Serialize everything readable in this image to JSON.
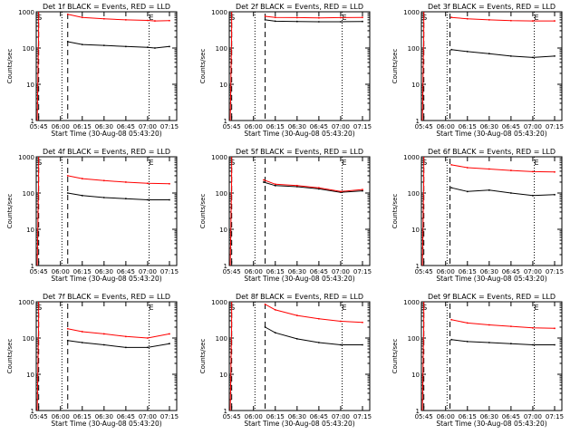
{
  "xlabel": "Start Time (30-Aug-08 05:43:20)",
  "ylabel": "Counts/sec",
  "x_ticks": [
    "05:45",
    "06:00",
    "06:15",
    "06:30",
    "06:45",
    "07:00",
    "07:15"
  ],
  "y_ticks": [
    "1",
    "10",
    "100",
    "1000"
  ],
  "colors": {
    "events": "#000000",
    "lld": "#ff0000",
    "axes": "#000000"
  },
  "chart_data": [
    {
      "type": "line",
      "title": "Det 1f BLACK = Events, RED = LLD",
      "x": [
        "06:05",
        "06:15",
        "06:30",
        "06:45",
        "07:00",
        "07:05",
        "07:15"
      ],
      "xlim": [
        "05:43:20",
        "07:20"
      ],
      "ylim": [
        1,
        1000
      ],
      "yscale": "log",
      "markers": {
        "S": "05:44",
        "E": "07:01"
      },
      "dashed_lines": [
        "05:45",
        "06:05"
      ],
      "dotted_lines": [
        "06:01",
        "07:01"
      ],
      "series": [
        {
          "name": "Events",
          "values": [
            150,
            125,
            118,
            110,
            105,
            100,
            110
          ]
        },
        {
          "name": "LLD",
          "values": [
            850,
            700,
            640,
            600,
            580,
            560,
            570
          ]
        }
      ]
    },
    {
      "type": "line",
      "title": "Det 2f BLACK = Events, RED = LLD",
      "x": [
        "06:08",
        "06:15",
        "06:30",
        "06:45",
        "07:00",
        "07:15"
      ],
      "xlim": [
        "05:43:20",
        "07:20"
      ],
      "ylim": [
        1,
        1000
      ],
      "yscale": "log",
      "markers": {
        "S": "05:44",
        "E": "07:01"
      },
      "dashed_lines": [
        "05:45",
        "06:08"
      ],
      "dotted_lines": [
        "06:01",
        "07:01"
      ],
      "series": [
        {
          "name": "Events",
          "values": [
            600,
            550,
            540,
            530,
            530,
            540
          ]
        },
        {
          "name": "LLD",
          "values": [
            750,
            700,
            690,
            680,
            690,
            700
          ]
        }
      ]
    },
    {
      "type": "line",
      "title": "Det 3f BLACK = Events, RED = LLD",
      "x": [
        "06:04",
        "06:15",
        "06:30",
        "06:45",
        "07:00",
        "07:15"
      ],
      "xlim": [
        "05:43:20",
        "07:20"
      ],
      "ylim": [
        1,
        1000
      ],
      "yscale": "log",
      "markers": {
        "S": "05:44",
        "E": "07:01"
      },
      "dashed_lines": [
        "05:45",
        "06:03"
      ],
      "dotted_lines": [
        "06:01",
        "07:01"
      ],
      "series": [
        {
          "name": "Events",
          "values": [
            90,
            80,
            70,
            60,
            55,
            60
          ]
        },
        {
          "name": "LLD",
          "values": [
            700,
            640,
            600,
            570,
            560,
            560
          ]
        }
      ]
    },
    {
      "type": "line",
      "title": "Det 4f BLACK = Events, RED = LLD",
      "x": [
        "06:05",
        "06:15",
        "06:30",
        "06:45",
        "07:00",
        "07:15"
      ],
      "xlim": [
        "05:43:20",
        "07:20"
      ],
      "ylim": [
        1,
        1000
      ],
      "yscale": "log",
      "markers": {
        "S": "05:44",
        "E": "07:01"
      },
      "dashed_lines": [
        "05:45",
        "06:05"
      ],
      "dotted_lines": [
        "06:01",
        "07:01"
      ],
      "series": [
        {
          "name": "Events",
          "values": [
            100,
            85,
            75,
            70,
            65,
            65
          ]
        },
        {
          "name": "LLD",
          "values": [
            300,
            250,
            220,
            200,
            185,
            180
          ]
        }
      ]
    },
    {
      "type": "line",
      "title": "Det 5f BLACK = Events, RED = LLD",
      "x": [
        "06:07",
        "06:15",
        "06:30",
        "06:45",
        "07:00",
        "07:15"
      ],
      "xlim": [
        "05:43:20",
        "07:20"
      ],
      "ylim": [
        1,
        1000
      ],
      "yscale": "log",
      "markers": {
        "S": "05:44",
        "E": "07:01"
      },
      "dashed_lines": [
        "05:45",
        "06:08"
      ],
      "dotted_lines": [
        "06:01",
        "07:01"
      ],
      "series": [
        {
          "name": "Events",
          "values": [
            200,
            160,
            150,
            130,
            105,
            115
          ]
        },
        {
          "name": "LLD",
          "values": [
            230,
            175,
            160,
            140,
            110,
            125
          ]
        }
      ]
    },
    {
      "type": "line",
      "title": "Det 6f BLACK = Events, RED = LLD",
      "x": [
        "06:04",
        "06:15",
        "06:30",
        "06:45",
        "07:00",
        "07:15"
      ],
      "xlim": [
        "05:43:20",
        "07:20"
      ],
      "ylim": [
        1,
        1000
      ],
      "yscale": "log",
      "markers": {
        "S": "05:44",
        "E": "07:01"
      },
      "dashed_lines": [
        "05:45",
        "06:03"
      ],
      "dotted_lines": [
        "06:01",
        "07:01"
      ],
      "series": [
        {
          "name": "Events",
          "values": [
            140,
            110,
            120,
            100,
            85,
            90
          ]
        },
        {
          "name": "LLD",
          "values": [
            600,
            500,
            460,
            420,
            390,
            380
          ]
        }
      ]
    },
    {
      "type": "line",
      "title": "Det 7f BLACK = Events, RED = LLD",
      "x": [
        "06:05",
        "06:15",
        "06:30",
        "06:45",
        "07:00",
        "07:15"
      ],
      "xlim": [
        "05:43:20",
        "07:20"
      ],
      "ylim": [
        1,
        1000
      ],
      "yscale": "log",
      "markers": {
        "S": "05:44",
        "E": "07:01"
      },
      "dashed_lines": [
        "05:45",
        "06:05"
      ],
      "dotted_lines": [
        "06:01",
        "07:01"
      ],
      "series": [
        {
          "name": "Events",
          "values": [
            85,
            75,
            65,
            55,
            55,
            70
          ]
        },
        {
          "name": "LLD",
          "values": [
            180,
            150,
            130,
            110,
            100,
            130
          ]
        }
      ]
    },
    {
      "type": "line",
      "title": "Det 8f BLACK = Events, RED = LLD",
      "x": [
        "06:08",
        "06:15",
        "06:30",
        "06:45",
        "07:00",
        "07:15"
      ],
      "xlim": [
        "05:43:20",
        "07:20"
      ],
      "ylim": [
        1,
        1000
      ],
      "yscale": "log",
      "markers": {
        "S": "05:44",
        "E": "07:01"
      },
      "dashed_lines": [
        "05:45",
        "06:08"
      ],
      "dotted_lines": [
        "06:01",
        "07:01"
      ],
      "series": [
        {
          "name": "Events",
          "values": [
            200,
            140,
            95,
            75,
            65,
            65
          ]
        },
        {
          "name": "LLD",
          "values": [
            850,
            600,
            420,
            340,
            290,
            270
          ]
        }
      ]
    },
    {
      "type": "line",
      "title": "Det 9f BLACK = Events, RED = LLD",
      "x": [
        "06:04",
        "06:15",
        "06:30",
        "06:45",
        "07:00",
        "07:15"
      ],
      "xlim": [
        "05:43:20",
        "07:20"
      ],
      "ylim": [
        1,
        1000
      ],
      "yscale": "log",
      "markers": {
        "S": "05:44",
        "E": "07:01"
      },
      "dashed_lines": [
        "05:45",
        "06:03"
      ],
      "dotted_lines": [
        "06:01",
        "07:01"
      ],
      "series": [
        {
          "name": "Events",
          "values": [
            90,
            80,
            75,
            70,
            65,
            65
          ]
        },
        {
          "name": "LLD",
          "values": [
            320,
            260,
            230,
            210,
            190,
            185
          ]
        }
      ]
    }
  ]
}
